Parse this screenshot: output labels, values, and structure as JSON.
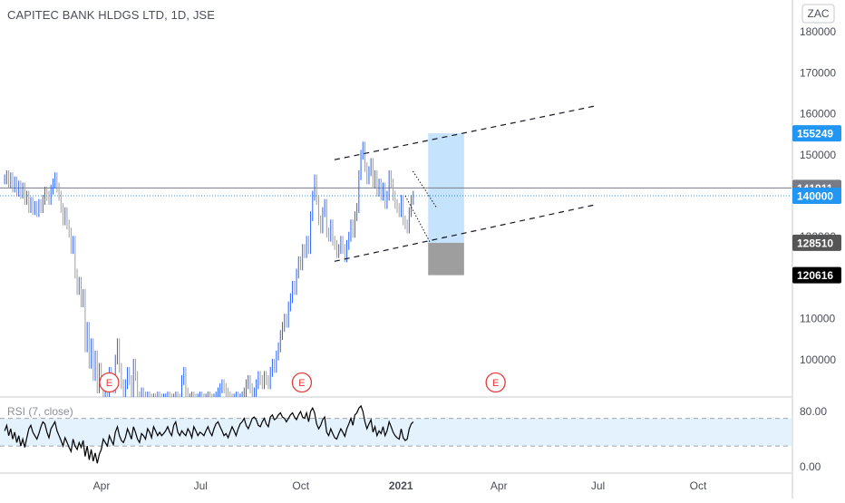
{
  "header": {
    "symbol_title": "CAPITEC BANK HLDGS LTD, 1D, JSE",
    "currency_badge": "ZAC"
  },
  "rsi_panel": {
    "title": "RSI (7, close)",
    "upper_band": 70,
    "lower_band": 30
  },
  "colors": {
    "up_candle": "#2962ff",
    "down_candle": "#9e9e9e",
    "target_zone": "#bbdefb",
    "stop_zone": "#9e9e9e",
    "price_label_blue": "#2196f3",
    "price_label_gray": "#787b86",
    "price_label_dark": "#555555",
    "price_label_black": "#000000",
    "earnings_marker": "#e53935",
    "channel_line": "#131722",
    "rsi_line": "#000000",
    "rsi_band_fill": "#e3f2fd"
  },
  "chart_data": [
    {
      "type": "candlestick",
      "title": "CAPITEC BANK HLDGS LTD, 1D, JSE",
      "y_axis": {
        "ticks": [
          100000,
          110000,
          120000,
          130000,
          140000,
          150000,
          160000,
          170000,
          180000
        ],
        "tick_labels": [
          "100000",
          "110000",
          "120000",
          "130000",
          "140000",
          "150000",
          "160000",
          "170000",
          "180000"
        ],
        "range": [
          90000,
          183000
        ]
      },
      "x_axis": {
        "tick_labels": [
          {
            "label": "Apr",
            "date": "2020-04-01"
          },
          {
            "label": "Jul",
            "date": "2020-07-01"
          },
          {
            "label": "Oct",
            "date": "2020-10-01"
          },
          {
            "label": "2021",
            "date": "2021-01-01"
          },
          {
            "label": "Apr",
            "date": "2021-04-01"
          },
          {
            "label": "Jul",
            "date": "2021-07-01"
          },
          {
            "label": "Oct",
            "date": "2021-10-01"
          }
        ]
      },
      "horizontal_lines": [
        {
          "value": 141911,
          "style": "solid"
        },
        {
          "value": 140000,
          "style": "dotted"
        }
      ],
      "price_labels": [
        {
          "value": 155249,
          "text": "155249",
          "color": "blue"
        },
        {
          "value": 141911,
          "text": "141911",
          "color": "gray"
        },
        {
          "value": 140000,
          "text": "140000",
          "color": "blue"
        },
        {
          "value": 128510,
          "text": "128510",
          "color": "dark"
        },
        {
          "value": 120616,
          "text": "120616",
          "color": "black"
        }
      ],
      "position_tool": {
        "start": "2021-01-26",
        "end": "2021-02-28",
        "entry": 128510,
        "target": 155249,
        "stop": 120616
      },
      "channel_lines": [
        {
          "from": {
            "date": "2020-11-01",
            "value": 148800
          },
          "to": {
            "date": "2021-06-30",
            "value": 162000
          }
        },
        {
          "from": {
            "date": "2020-11-01",
            "value": 124000
          },
          "to": {
            "date": "2021-06-30",
            "value": 137900
          }
        }
      ],
      "small_trendlines": [
        {
          "from": {
            "date": "2021-01-12",
            "value": 146000
          },
          "to": {
            "date": "2021-02-03",
            "value": 137000
          }
        },
        {
          "from": {
            "date": "2021-01-05",
            "value": 140000
          },
          "to": {
            "date": "2021-01-28",
            "value": 128500
          }
        }
      ],
      "earnings_markers": [
        {
          "date": "2020-04-08",
          "text": "E"
        },
        {
          "date": "2020-10-02",
          "text": "E"
        },
        {
          "date": "2021-03-29",
          "text": "E"
        }
      ],
      "price_series": {
        "x_start": "2020-01-03",
        "interval": "1D",
        "close": [
          144000,
          145000,
          143000,
          144500,
          142000,
          143500,
          141000,
          142500,
          140500,
          142000,
          139000,
          140000,
          137000,
          138500,
          136500,
          137500,
          136000,
          138000,
          137000,
          139000,
          141000,
          140000,
          139000,
          141500,
          143000,
          144500,
          142000,
          140000,
          137000,
          134000,
          136000,
          133000,
          131000,
          127000,
          129000,
          121000,
          117000,
          119000,
          114000,
          116000,
          103000,
          108000,
          99000,
          104000,
          96000,
          101000,
          93000,
          98000,
          95000,
          90500,
          94000,
          91000,
          97000,
          95000,
          93000,
          100000,
          104000,
          98000,
          94000,
          92000,
          94000,
          97000,
          95000,
          92000,
          99000,
          96000,
          91000,
          90500,
          92000,
          91000,
          90500,
          91000,
          90500,
          90000,
          90500,
          90000,
          91000,
          90500,
          90000,
          90500,
          90500,
          91000,
          90500,
          90000,
          90500,
          91000,
          90500,
          90000,
          95000,
          97000,
          92000,
          90500,
          90500,
          91000,
          90500,
          90000,
          90500,
          91000,
          90500,
          90000,
          90500,
          91000,
          90500,
          90000,
          90500,
          91000,
          92000,
          93000,
          94000,
          93000,
          92000,
          91000,
          90500,
          90000,
          90500,
          91000,
          90500,
          90500,
          91000,
          92000,
          94000,
          95000,
          93000,
          91000,
          92000,
          94000,
          96000,
          95000,
          94000,
          96000,
          95000,
          94000,
          97000,
          99000,
          98000,
          101000,
          103000,
          106000,
          108000,
          110000,
          109000,
          113000,
          115000,
          118000,
          117000,
          121000,
          124000,
          123000,
          127000,
          126000,
          129000,
          127000,
          135000,
          140000,
          144000,
          139000,
          134000,
          132000,
          136000,
          138000,
          131000,
          130000,
          133000,
          129000,
          128000,
          126000,
          127000,
          129000,
          127000,
          125000,
          128000,
          130000,
          133000,
          131000,
          135000,
          137000,
          145000,
          150000,
          152000,
          147000,
          144000,
          146000,
          148000,
          143000,
          145000,
          141000,
          143000,
          140000,
          142000,
          138000,
          140000,
          145000,
          143000,
          140000,
          138000,
          137000,
          136000,
          139000,
          134000,
          133000,
          132000,
          136000,
          139000,
          140000
        ]
      }
    },
    {
      "type": "line",
      "title": "RSI (7, close)",
      "y_axis": {
        "tick_labels": [
          "80.00",
          "0.00"
        ],
        "ticks": [
          80,
          0
        ],
        "range": [
          -5,
          100
        ]
      },
      "bands": [
        70,
        30
      ],
      "series": [
        {
          "name": "RSI (7, close)",
          "x_start": "2020-01-03",
          "interval": "1D",
          "values": [
            52,
            60,
            45,
            55,
            40,
            50,
            35,
            45,
            30,
            40,
            28,
            42,
            55,
            60,
            50,
            45,
            40,
            48,
            58,
            65,
            62,
            50,
            42,
            55,
            60,
            65,
            52,
            45,
            38,
            30,
            42,
            35,
            28,
            22,
            40,
            30,
            25,
            35,
            28,
            38,
            15,
            30,
            10,
            25,
            8,
            20,
            5,
            18,
            25,
            40,
            35,
            30,
            45,
            38,
            32,
            50,
            58,
            45,
            38,
            35,
            42,
            55,
            48,
            40,
            58,
            50,
            40,
            35,
            48,
            45,
            40,
            55,
            50,
            42,
            58,
            52,
            45,
            50,
            45,
            48,
            52,
            58,
            50,
            45,
            60,
            65,
            50,
            45,
            52,
            48,
            45,
            55,
            50,
            42,
            58,
            52,
            45,
            50,
            48,
            45,
            52,
            58,
            50,
            45,
            55,
            62,
            65,
            58,
            52,
            45,
            48,
            42,
            50,
            58,
            52,
            45,
            55,
            62,
            65,
            70,
            60,
            55,
            62,
            70,
            72,
            68,
            60,
            58,
            65,
            70,
            62,
            58,
            72,
            75,
            68,
            70,
            75,
            78,
            72,
            70,
            65,
            70,
            75,
            78,
            72,
            68,
            75,
            80,
            72,
            70,
            78,
            65,
            80,
            85,
            78,
            62,
            55,
            60,
            68,
            72,
            50,
            45,
            55,
            48,
            42,
            40,
            48,
            55,
            50,
            44,
            55,
            62,
            70,
            60,
            75,
            78,
            85,
            88,
            80,
            65,
            55,
            62,
            68,
            50,
            58,
            45,
            52,
            48,
            58,
            45,
            52,
            65,
            58,
            50,
            45,
            42,
            40,
            55,
            42,
            38,
            40,
            55,
            62,
            65
          ]
        }
      ]
    }
  ]
}
